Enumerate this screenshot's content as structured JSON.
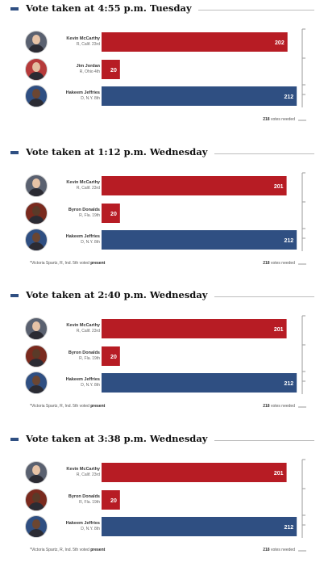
{
  "colors": {
    "republican": "#b71c24",
    "democrat": "#2f4f82",
    "marker": "#2f4f82"
  },
  "chart_data": [
    {
      "type": "bar",
      "title": "Vote taken at 4:55 p.m. Tuesday",
      "threshold": 218,
      "xlim": [
        0,
        218
      ],
      "rows": [
        {
          "name": "Kevin McCarthy",
          "district": "R, Calif. 23rd",
          "value": 202,
          "party": "R"
        },
        {
          "name": "Jim Jordan",
          "district": "R, Ohio 4th",
          "value": 20,
          "party": "R"
        },
        {
          "name": "Hakeem Jeffries",
          "district": "D, N.Y. 8th",
          "value": 212,
          "party": "D"
        }
      ],
      "footnote_pre": "",
      "footnote_bold": "",
      "needed_count": "218",
      "needed_text": "votes needed"
    },
    {
      "type": "bar",
      "title": "Vote taken at 1:12 p.m. Wednesday",
      "threshold": 218,
      "xlim": [
        0,
        218
      ],
      "rows": [
        {
          "name": "Kevin McCarthy",
          "district": "R, Calif. 23rd",
          "value": 201,
          "party": "R"
        },
        {
          "name": "Byron Donalds",
          "district": "R, Fla. 19th",
          "value": 20,
          "party": "R"
        },
        {
          "name": "Hakeem Jeffries",
          "district": "D, N.Y. 8th",
          "value": 212,
          "party": "D"
        }
      ],
      "footnote_pre": "*Victoria Spartz, R, Ind. 5th voted ",
      "footnote_bold": "present",
      "needed_count": "218",
      "needed_text": "votes needed"
    },
    {
      "type": "bar",
      "title": "Vote taken at 2:40 p.m. Wednesday",
      "threshold": 218,
      "xlim": [
        0,
        218
      ],
      "rows": [
        {
          "name": "Kevin McCarthy",
          "district": "R, Calif. 23rd",
          "value": 201,
          "party": "R"
        },
        {
          "name": "Byron Donalds",
          "district": "R, Fla. 19th",
          "value": 20,
          "party": "R"
        },
        {
          "name": "Hakeem Jeffries",
          "district": "D, N.Y. 8th",
          "value": 212,
          "party": "D"
        }
      ],
      "footnote_pre": "*Victoria Spartz, R, Ind. 5th voted ",
      "footnote_bold": "present",
      "needed_count": "218",
      "needed_text": "votes needed"
    },
    {
      "type": "bar",
      "title": "Vote taken at 3:38 p.m. Wednesday",
      "threshold": 218,
      "xlim": [
        0,
        218
      ],
      "rows": [
        {
          "name": "Kevin McCarthy",
          "district": "R, Calif. 23rd",
          "value": 201,
          "party": "R"
        },
        {
          "name": "Byron Donalds",
          "district": "R, Fla. 19th",
          "value": 20,
          "party": "R"
        },
        {
          "name": "Hakeem Jeffries",
          "district": "D, N.Y. 8th",
          "value": 212,
          "party": "D"
        }
      ],
      "footnote_pre": "*Victoria Spartz, R, Ind. 5th voted ",
      "footnote_bold": "present",
      "needed_count": "218",
      "needed_text": "votes needed"
    }
  ]
}
